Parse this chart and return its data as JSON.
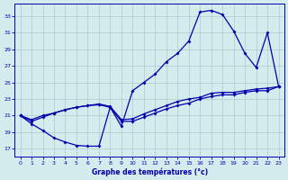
{
  "xlabel": "Graphe des températures (°c)",
  "xlim": [
    -0.5,
    23.5
  ],
  "ylim": [
    16.0,
    34.5
  ],
  "yticks": [
    17,
    19,
    21,
    23,
    25,
    27,
    29,
    31,
    33
  ],
  "xticks": [
    0,
    1,
    2,
    3,
    4,
    5,
    6,
    7,
    8,
    9,
    10,
    11,
    12,
    13,
    14,
    15,
    16,
    17,
    18,
    19,
    20,
    21,
    22,
    23
  ],
  "bg_color": "#d4ecee",
  "line_color": "#0000aa",
  "grid_color": "#aacccc",
  "line1_x": [
    0,
    1,
    2,
    3,
    4,
    5,
    6,
    7,
    8,
    9,
    10,
    11,
    12,
    13,
    14,
    15,
    16,
    17,
    18,
    19,
    20,
    21,
    22,
    23
  ],
  "line1_y": [
    21.0,
    20.0,
    19.2,
    18.3,
    17.8,
    17.4,
    17.3,
    17.3,
    22.0,
    19.7,
    24.0,
    25.0,
    26.0,
    27.5,
    28.5,
    30.0,
    33.5,
    33.7,
    33.2,
    31.2,
    28.5,
    26.8,
    31.0,
    24.5
  ],
  "line2_x": [
    0,
    1,
    2,
    3,
    4,
    5,
    6,
    7,
    8,
    9,
    10,
    11,
    12,
    13,
    14,
    15,
    16,
    17,
    18,
    19,
    20,
    21,
    22,
    23
  ],
  "line2_y": [
    21.0,
    20.3,
    20.8,
    21.3,
    21.7,
    22.0,
    22.2,
    22.3,
    22.0,
    20.3,
    20.3,
    20.8,
    21.3,
    21.8,
    22.2,
    22.5,
    23.0,
    23.3,
    23.5,
    23.5,
    23.8,
    24.0,
    24.0,
    24.5
  ],
  "line3_x": [
    0,
    1,
    2,
    3,
    4,
    5,
    6,
    7,
    8,
    9,
    10,
    11,
    12,
    13,
    14,
    15,
    16,
    17,
    18,
    19,
    20,
    21,
    22,
    23
  ],
  "line3_y": [
    21.0,
    20.5,
    21.0,
    21.3,
    21.7,
    22.0,
    22.2,
    22.4,
    22.1,
    20.5,
    20.6,
    21.2,
    21.7,
    22.2,
    22.7,
    23.0,
    23.2,
    23.7,
    23.8,
    23.8,
    24.0,
    24.2,
    24.3,
    24.5
  ]
}
